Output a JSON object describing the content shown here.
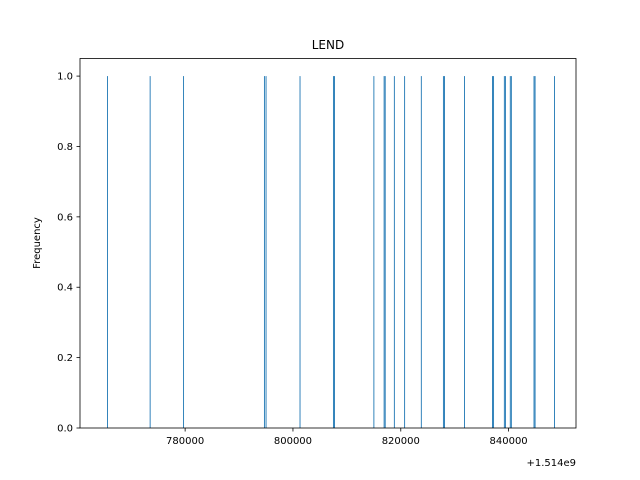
{
  "chart_data": {
    "type": "bar",
    "title": "LEND",
    "xlabel": "",
    "ylabel": "Frequency",
    "x_offset_label": "+1.514e9",
    "xlim": [
      760500,
      852500
    ],
    "ylim": [
      0,
      1.05
    ],
    "x_ticks": [
      {
        "value": 780000,
        "label": "780000"
      },
      {
        "value": 800000,
        "label": "800000"
      },
      {
        "value": 820000,
        "label": "820000"
      },
      {
        "value": 840000,
        "label": "840000"
      }
    ],
    "y_ticks": [
      {
        "value": 0.0,
        "label": "0.0"
      },
      {
        "value": 0.2,
        "label": "0.2"
      },
      {
        "value": 0.4,
        "label": "0.4"
      },
      {
        "value": 0.6,
        "label": "0.6"
      },
      {
        "value": 0.8,
        "label": "0.8"
      },
      {
        "value": 1.0,
        "label": "1.0"
      }
    ],
    "bar_color": "#1f77b4",
    "bins": [
      {
        "x": 765600,
        "count": 1
      },
      {
        "x": 773500,
        "count": 1
      },
      {
        "x": 779700,
        "count": 1
      },
      {
        "x": 794700,
        "count": 1
      },
      {
        "x": 795000,
        "count": 1
      },
      {
        "x": 801300,
        "count": 1
      },
      {
        "x": 807500,
        "count": 1
      },
      {
        "x": 807700,
        "count": 1
      },
      {
        "x": 815000,
        "count": 1
      },
      {
        "x": 816900,
        "count": 1
      },
      {
        "x": 817100,
        "count": 1
      },
      {
        "x": 818800,
        "count": 1
      },
      {
        "x": 820700,
        "count": 1
      },
      {
        "x": 823800,
        "count": 1
      },
      {
        "x": 827900,
        "count": 1
      },
      {
        "x": 828100,
        "count": 1
      },
      {
        "x": 831800,
        "count": 1
      },
      {
        "x": 837000,
        "count": 1
      },
      {
        "x": 837200,
        "count": 1
      },
      {
        "x": 839200,
        "count": 1
      },
      {
        "x": 839400,
        "count": 1
      },
      {
        "x": 840300,
        "count": 1
      },
      {
        "x": 840500,
        "count": 1
      },
      {
        "x": 844700,
        "count": 1
      },
      {
        "x": 844900,
        "count": 1
      },
      {
        "x": 848500,
        "count": 1
      }
    ]
  }
}
